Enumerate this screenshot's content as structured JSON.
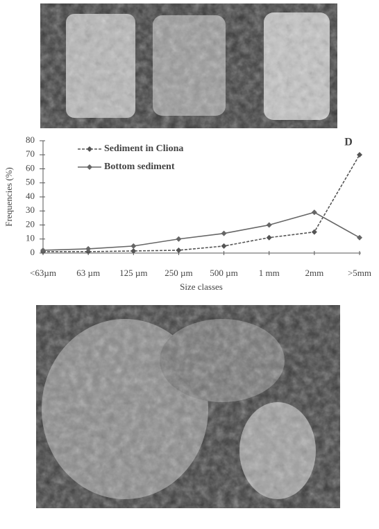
{
  "chart_data": {
    "type": "line",
    "annotation": "D",
    "x_label": "Size classes",
    "y_label": "Frequencies (%)",
    "categories": [
      "<63µm",
      "63 µm",
      "125 µm",
      "250 µm",
      "500 µm",
      "1 mm",
      "2mm",
      ">5mm"
    ],
    "series": [
      {
        "name": "Sediment in Cliona",
        "color": "#555555",
        "dashed": true,
        "values": [
          1,
          1,
          1.5,
          2,
          5,
          11,
          15,
          70
        ]
      },
      {
        "name": "Bottom sediment",
        "color": "#666666",
        "dashed": false,
        "values": [
          2,
          3,
          5,
          10,
          14,
          20,
          29,
          11
        ]
      }
    ],
    "ylim": [
      0,
      80
    ],
    "yticks": [
      0,
      10,
      20,
      30,
      40,
      50,
      60,
      70,
      80
    ],
    "grid": false
  }
}
